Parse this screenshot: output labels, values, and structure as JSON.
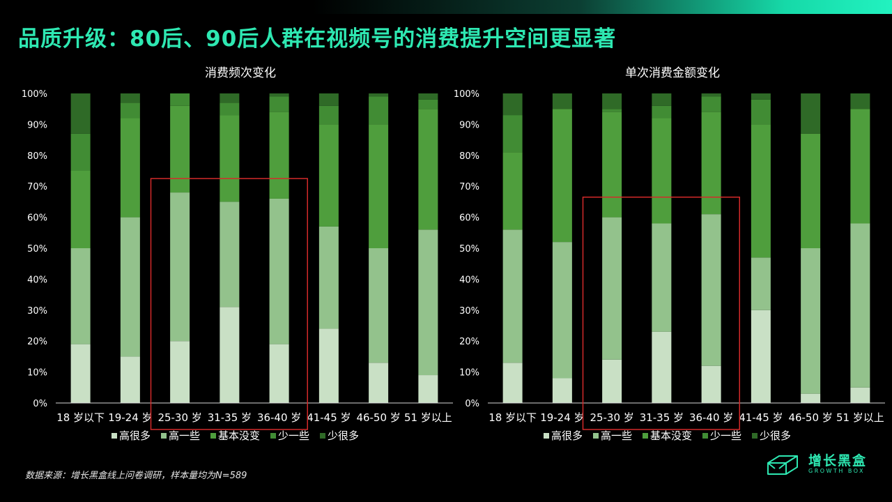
{
  "header": {
    "title": "品质升级：80后、90后人群在视频号的消费提升空间更显著"
  },
  "footer": {
    "source": "数据来源：增长黑盒线上问卷调研，样本量均为N=589"
  },
  "logo": {
    "name": "增长黑盒",
    "subtitle": "GROWTH BOX",
    "icon": "box-icon"
  },
  "colors": {
    "accent": "#2ee8b2",
    "highlight_box": "#d42a2a"
  },
  "chart_data": [
    {
      "type": "bar",
      "stacked": true,
      "title": "消费频次变化",
      "categories": [
        "18 岁以下",
        "19-24 岁",
        "25-30 岁",
        "31-35 岁",
        "36-40 岁",
        "41-45 岁",
        "46-50 岁",
        "51 岁以上"
      ],
      "series": [
        {
          "name": "高很多",
          "color": "#c9e0c5",
          "values": [
            19,
            15,
            20,
            31,
            19,
            24,
            13,
            9
          ]
        },
        {
          "name": "高一些",
          "color": "#93c28c",
          "values": [
            31,
            45,
            48,
            34,
            47,
            33,
            37,
            47
          ]
        },
        {
          "name": "基本没变",
          "color": "#4f9e3d",
          "values": [
            25,
            32,
            28,
            28,
            28,
            33,
            40,
            39
          ]
        },
        {
          "name": "少一些",
          "color": "#418c34",
          "values": [
            12,
            5,
            4,
            4,
            5,
            6,
            9,
            3
          ]
        },
        {
          "name": "少很多",
          "color": "#2f6a27",
          "values": [
            13,
            3,
            0,
            3,
            1,
            4,
            1,
            2
          ]
        }
      ],
      "y_ticks": [
        "0%",
        "10%",
        "20%",
        "30%",
        "40%",
        "50%",
        "60%",
        "70%",
        "80%",
        "90%",
        "100%"
      ],
      "ylim": [
        0,
        100
      ],
      "legend": "bottom",
      "grid": false,
      "highlight": {
        "from": "25-30 岁",
        "to": "36-40 岁",
        "top": 72.5
      }
    },
    {
      "type": "bar",
      "stacked": true,
      "title": "单次消费金额变化",
      "categories": [
        "18 岁以下",
        "19-24 岁",
        "25-30 岁",
        "31-35 岁",
        "36-40 岁",
        "41-45 岁",
        "46-50 岁",
        "51 岁以上"
      ],
      "series": [
        {
          "name": "高很多",
          "color": "#c9e0c5",
          "values": [
            13,
            8,
            14,
            23,
            12,
            30,
            3,
            5
          ]
        },
        {
          "name": "高一些",
          "color": "#93c28c",
          "values": [
            43,
            44,
            46,
            35,
            49,
            17,
            47,
            53
          ]
        },
        {
          "name": "基本没变",
          "color": "#4f9e3d",
          "values": [
            25,
            43,
            34,
            34,
            33,
            43,
            37,
            37
          ]
        },
        {
          "name": "少一些",
          "color": "#418c34",
          "values": [
            12,
            0,
            1,
            4,
            5,
            8,
            0,
            0
          ]
        },
        {
          "name": "少很多",
          "color": "#2f6a27",
          "values": [
            7,
            5,
            5,
            4,
            1,
            2,
            13,
            5
          ]
        }
      ],
      "y_ticks": [
        "0%",
        "10%",
        "20%",
        "30%",
        "40%",
        "50%",
        "60%",
        "70%",
        "80%",
        "90%",
        "100%"
      ],
      "ylim": [
        0,
        100
      ],
      "legend": "bottom",
      "grid": false,
      "highlight": {
        "from": "25-30 岁",
        "to": "36-40 岁",
        "top": 66.5
      }
    }
  ]
}
